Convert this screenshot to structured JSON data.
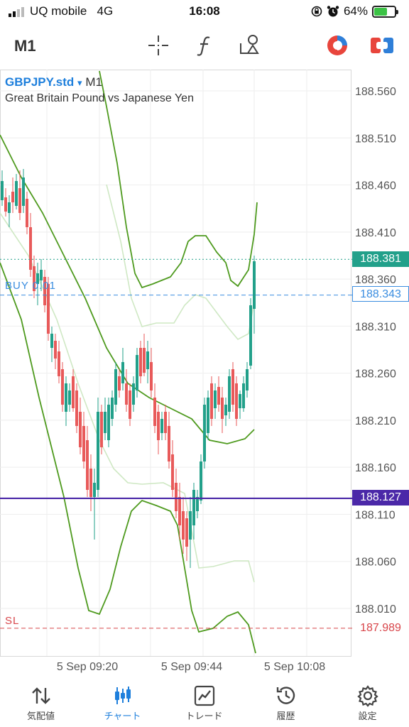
{
  "status": {
    "carrier": "UQ mobile",
    "network": "4G",
    "time": "16:08",
    "battery": "64%",
    "battery_level": 0.64
  },
  "toolbar": {
    "timeframe": "M1",
    "icons": [
      "crosshair-icon",
      "function-icon",
      "objects-icon",
      "mt-logo-icon",
      "trade-toggle-icon"
    ]
  },
  "chart": {
    "symbol": "GBPJPY.std",
    "dropdown": "▾",
    "timeframe": "M1",
    "description": "Great Britain Pound vs Japanese Yen",
    "buy_label": "BUY 0.01",
    "sl_label": "SL",
    "ask_price": "188.381",
    "buy_price": "188.343",
    "bid_price": "188.127",
    "sl_price": "187.989",
    "price_ticks": [
      "188.560",
      "188.510",
      "188.460",
      "188.410",
      "188.360",
      "188.310",
      "188.260",
      "188.210",
      "188.160",
      "188.110",
      "188.060",
      "188.010"
    ],
    "time_ticks": [
      "5 Sep 09:20",
      "5 Sep 09:44",
      "5 Sep 10:08"
    ],
    "colors": {
      "up": "#22a08a",
      "down": "#e85a5a",
      "band_outer": "#4e9a1e",
      "band_inner": "#cfe8c4",
      "bid_line": "#4b28a8",
      "ask_line": "#22a08a",
      "buy_line": "#3a8de0",
      "sl_line": "#d8454a"
    }
  },
  "nav": [
    {
      "label": "気配値",
      "icon": "quotes-icon"
    },
    {
      "label": "チャート",
      "icon": "chart-icon",
      "active": true
    },
    {
      "label": "トレード",
      "icon": "trade-icon"
    },
    {
      "label": "履歴",
      "icon": "history-icon"
    },
    {
      "label": "設定",
      "icon": "settings-icon"
    }
  ]
}
